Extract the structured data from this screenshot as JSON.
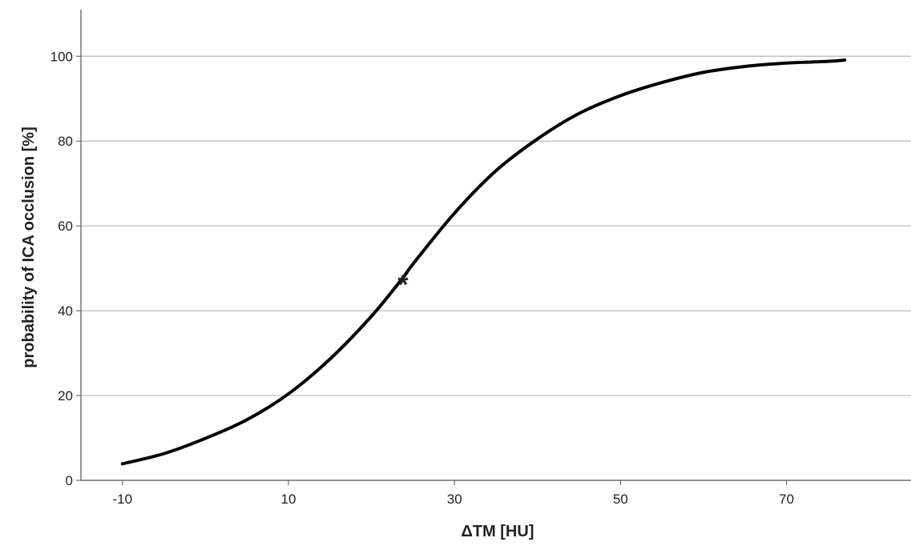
{
  "chart_data": {
    "type": "line",
    "title": "",
    "xlabel": "ΔTM [HU]",
    "ylabel": "probability of ICA occlusion [%]",
    "xlim": [
      -15,
      85
    ],
    "ylim": [
      0,
      111
    ],
    "x_ticks": [
      -10,
      10,
      30,
      50,
      70
    ],
    "x_tick_labels": [
      "-10",
      "10",
      "30",
      "50",
      "70"
    ],
    "y_ticks": [
      0,
      20,
      40,
      60,
      80,
      100
    ],
    "y_tick_labels": [
      "0",
      "20",
      "40",
      "60",
      "80",
      "100"
    ],
    "grid": "horizontal",
    "legend": "none",
    "series": [
      {
        "x": [
          -10,
          -5,
          0,
          5,
          10,
          15,
          20,
          23.8,
          25,
          30,
          35,
          40,
          45,
          50,
          55,
          60,
          65,
          70,
          75,
          77
        ],
        "values": [
          3.9,
          6.3,
          9.9,
          14.3,
          20.4,
          28.6,
          38.7,
          47.8,
          51,
          63,
          73,
          80.5,
          86.5,
          90.7,
          93.8,
          96.2,
          97.6,
          98.4,
          98.8,
          99.1
        ],
        "color": "#000000"
      }
    ],
    "annotations": [
      {
        "text": "*",
        "x": 23.8,
        "y": 47.8
      }
    ]
  },
  "colors": {
    "line": "#000000",
    "grid": "#b8b8b8",
    "axis": "#555555",
    "text": "#222222",
    "background": "#ffffff"
  }
}
